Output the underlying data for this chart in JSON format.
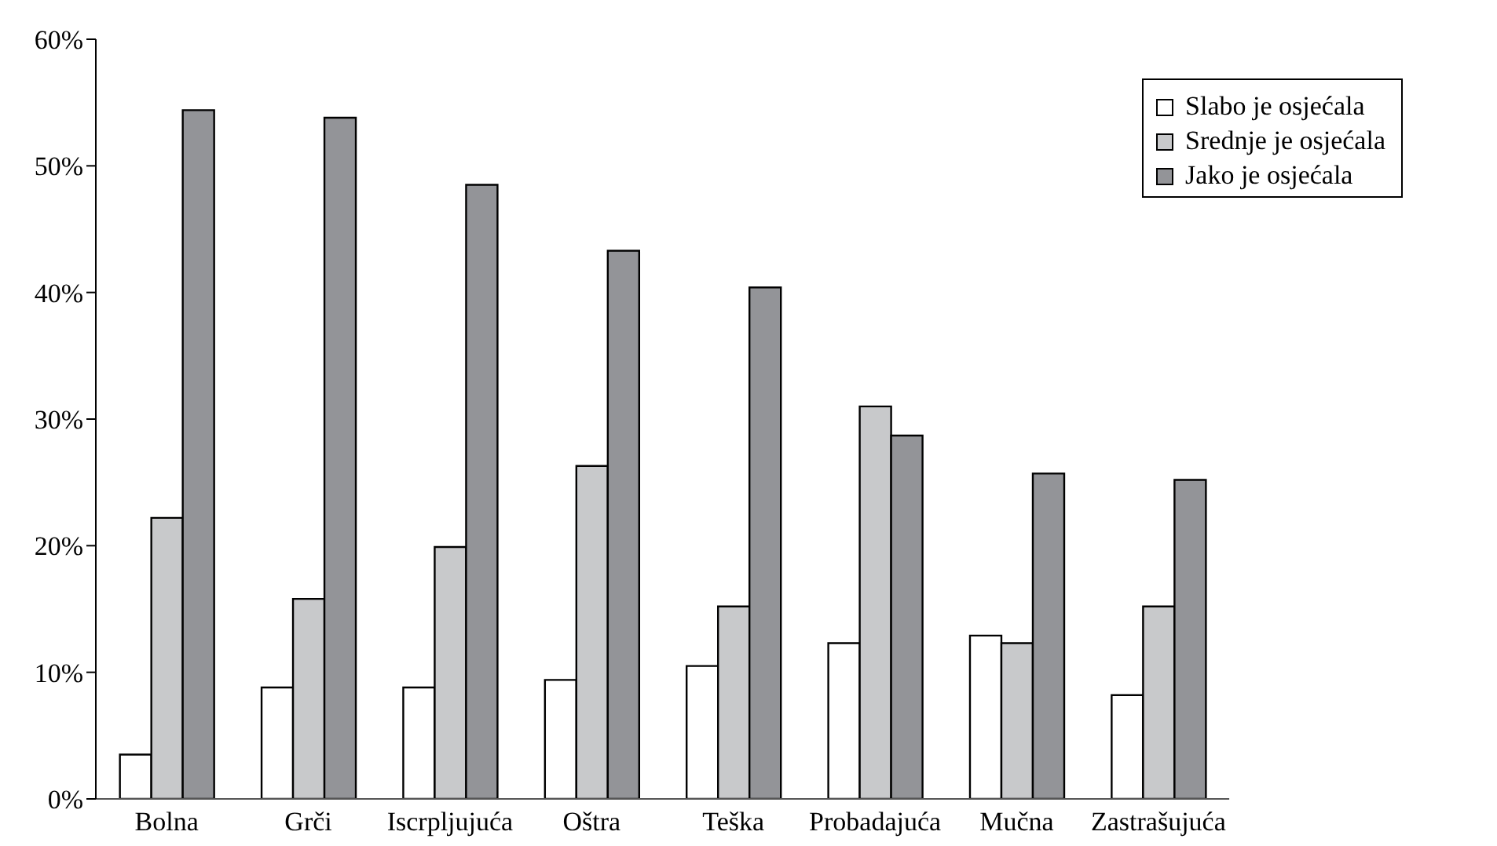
{
  "chart_data": {
    "type": "bar",
    "categories": [
      "Bolna",
      "Grči",
      "Iscrpljujuća",
      "Oštra",
      "Teška",
      "Probadajuća",
      "Mučna",
      "Zastrašujuća"
    ],
    "series": [
      {
        "name": "Slabo je osjećala",
        "color": "#ffffff",
        "values": [
          3.5,
          8.8,
          8.8,
          9.4,
          10.5,
          12.3,
          12.9,
          8.2
        ]
      },
      {
        "name": "Srednje je osjećala",
        "color": "#c8c9cb",
        "values": [
          22.2,
          15.8,
          19.9,
          26.3,
          15.2,
          31.0,
          12.3,
          15.2
        ]
      },
      {
        "name": "Jako je osjećala",
        "color": "#939498",
        "values": [
          54.4,
          53.8,
          48.5,
          43.3,
          40.4,
          28.7,
          25.7,
          25.2
        ]
      }
    ],
    "ylim": [
      0,
      60
    ],
    "yticks": [
      {
        "value": 0,
        "label": "0%"
      },
      {
        "value": 10,
        "label": "10%"
      },
      {
        "value": 20,
        "label": "20%"
      },
      {
        "value": 30,
        "label": "30%"
      },
      {
        "value": 40,
        "label": "40%"
      },
      {
        "value": 50,
        "label": "50%"
      },
      {
        "value": 60,
        "label": "60%"
      }
    ],
    "grid": false,
    "legend": "top right"
  }
}
